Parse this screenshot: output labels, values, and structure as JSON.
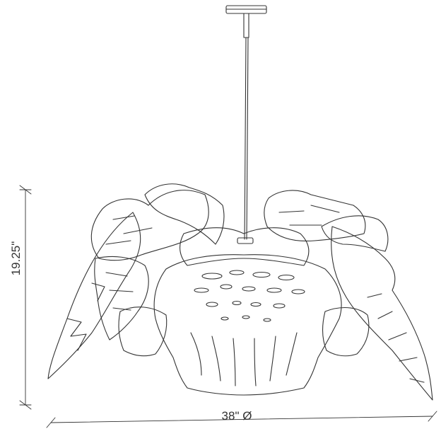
{
  "dimensions": {
    "height": "19.25\"",
    "width": "38\" Ø"
  },
  "colors": {
    "line": "#333333",
    "background": "#ffffff"
  }
}
